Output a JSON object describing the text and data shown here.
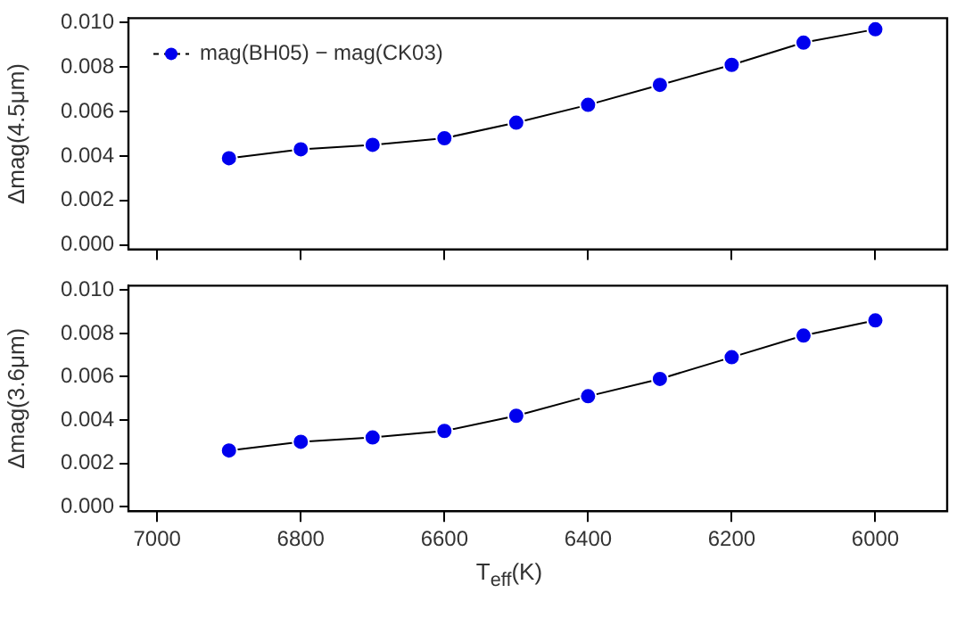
{
  "chart_data": [
    {
      "type": "line",
      "ylabel": "Δmag(4.5μm)",
      "x": [
        6900,
        6800,
        6700,
        6600,
        6500,
        6400,
        6300,
        6200,
        6100,
        6000
      ],
      "xlim": [
        7040,
        5900
      ],
      "ylim": [
        -0.0002,
        0.0102
      ],
      "yticks": [
        {
          "value": 0,
          "label": "0.000"
        },
        {
          "value": 0.002,
          "label": "0.002"
        },
        {
          "value": 0.004,
          "label": "0.004"
        },
        {
          "value": 0.006,
          "label": "0.006"
        },
        {
          "value": 0.008,
          "label": "0.008"
        },
        {
          "value": 0.01,
          "label": "0.010"
        }
      ],
      "xticks": [
        7000,
        6800,
        6600,
        6400,
        6200,
        6000
      ],
      "tick_labels": "y",
      "marker": "circle",
      "legend": "top left",
      "grid": false,
      "series": [
        {
          "name": "mag(BH05) − mag(CK03)",
          "color": "#0000ee",
          "values": [
            0.0039,
            0.0043,
            0.0045,
            0.0048,
            0.0055,
            0.0063,
            0.0072,
            0.0081,
            0.0091,
            0.0097
          ]
        }
      ]
    },
    {
      "type": "line",
      "ylabel": "Δmag(3.6μm)",
      "xlabel": "T$_{eff}$(K)",
      "x": [
        6900,
        6800,
        6700,
        6600,
        6500,
        6400,
        6300,
        6200,
        6100,
        6000
      ],
      "xlim": [
        7040,
        5900
      ],
      "ylim": [
        -0.0002,
        0.0102
      ],
      "yticks": [
        {
          "value": 0,
          "label": "0.000"
        },
        {
          "value": 0.002,
          "label": "0.002"
        },
        {
          "value": 0.004,
          "label": "0.004"
        },
        {
          "value": 0.006,
          "label": "0.006"
        },
        {
          "value": 0.008,
          "label": "0.008"
        },
        {
          "value": 0.01,
          "label": "0.010"
        }
      ],
      "xticks": [
        7000,
        6800,
        6600,
        6400,
        6200,
        6000
      ],
      "marker": "circle",
      "grid": false,
      "series": [
        {
          "color": "#0000ee",
          "values": [
            0.0026,
            0.003,
            0.0032,
            0.0035,
            0.0042,
            0.0051,
            0.0059,
            0.0069,
            0.0079,
            0.0086
          ]
        }
      ]
    }
  ]
}
